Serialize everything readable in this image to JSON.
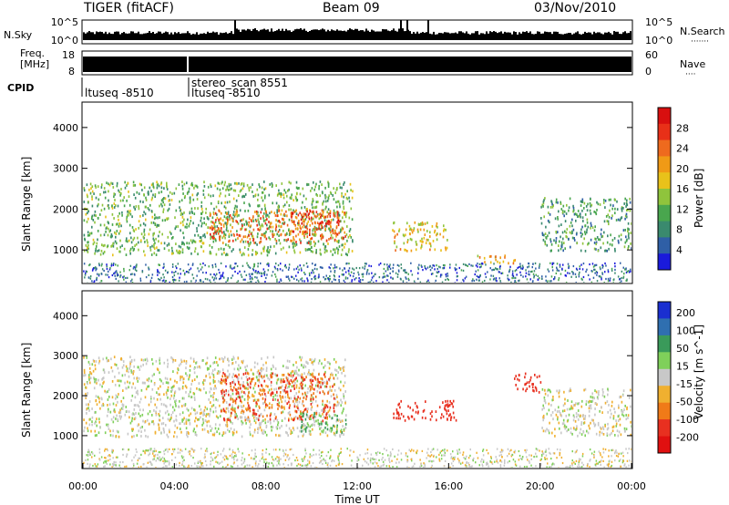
{
  "header": {
    "title": "TIGER (fitACF)",
    "beam": "Beam 09",
    "date": "03/Nov/2010"
  },
  "top_panels": {
    "nsky_label": "N.Sky",
    "nsky_ticks": [
      "10^5",
      "10^0"
    ],
    "nsearch_label": "N.Search",
    "nsearch_ticks": [
      "10^5",
      "10^0"
    ],
    "freq_label_line1": "Freq.",
    "freq_label_line2": "[MHz]",
    "freq_ticks": [
      "18",
      "8"
    ],
    "nave_label": "Nave",
    "nave_ticks": [
      "60",
      "0"
    ],
    "cpid_label": "CPID",
    "cpid_entries": [
      {
        "text": "ltuseq -8510",
        "time": "00:00"
      },
      {
        "text": "stereo_scan 8551",
        "time": "04:50"
      },
      {
        "text": "ltuseq -8510",
        "time": "04:50"
      }
    ]
  },
  "chart_data": [
    {
      "type": "heatmap",
      "name": "power",
      "ylabel": "Slant Range [km]",
      "yticks": [
        1000,
        2000,
        3000,
        4000
      ],
      "ylim": [
        200,
        4600
      ],
      "xlim": [
        "00:00",
        "24:00"
      ],
      "colorbar_label": "Power [dB]",
      "colorbar_ticks": [
        4,
        8,
        12,
        16,
        20,
        24,
        28
      ],
      "colorbar_range": [
        0,
        32
      ],
      "colors": [
        "#1a1adb",
        "#2f5fa6",
        "#3a8a6e",
        "#49a64e",
        "#8fc43c",
        "#e8c21a",
        "#f09a16",
        "#ee6a1e",
        "#e83018",
        "#d80f0f"
      ],
      "regions": [
        {
          "t": [
            0.0,
            11.8
          ],
          "r": [
            900,
            2700
          ],
          "level": 12
        },
        {
          "t": [
            5.5,
            11.5
          ],
          "r": [
            1200,
            2000
          ],
          "level": 24
        },
        {
          "t": [
            9.0,
            11.2
          ],
          "r": [
            1400,
            2000
          ],
          "level": 26
        },
        {
          "t": [
            13.5,
            16.0
          ],
          "r": [
            1000,
            1700
          ],
          "level": 18
        },
        {
          "t": [
            17.2,
            19.0
          ],
          "r": [
            700,
            900
          ],
          "level": 20
        },
        {
          "t": [
            20.0,
            24.0
          ],
          "r": [
            1000,
            2300
          ],
          "level": 10
        }
      ]
    },
    {
      "type": "heatmap",
      "name": "velocity",
      "ylabel": "Slant Range [km]",
      "yticks": [
        1000,
        2000,
        3000,
        4000
      ],
      "ylim": [
        200,
        4600
      ],
      "xlim": [
        "00:00",
        "24:00"
      ],
      "xticks": [
        "00:00",
        "04:00",
        "08:00",
        "12:00",
        "16:00",
        "20:00",
        "00:00"
      ],
      "xlabel": "Time UT",
      "colorbar_label": "Velocity [m s^-1]",
      "colorbar_ticks": [
        200,
        100,
        50,
        15,
        -15,
        -50,
        -100,
        -200
      ],
      "colors": [
        "#1a2fd0",
        "#2f6fb0",
        "#3a9a5a",
        "#7fd05a",
        "#c8c8c8",
        "#f0b030",
        "#f07a18",
        "#e83020",
        "#e01010"
      ],
      "regions": [
        {
          "t": [
            0.0,
            11.5
          ],
          "r": [
            1000,
            3000
          ],
          "level": 0
        },
        {
          "t": [
            6.0,
            11.0
          ],
          "r": [
            1400,
            2600
          ],
          "level": -100
        },
        {
          "t": [
            9.5,
            11.5
          ],
          "r": [
            1100,
            1600
          ],
          "level": 50
        },
        {
          "t": [
            13.5,
            16.3
          ],
          "r": [
            1400,
            1900
          ],
          "level": -200
        },
        {
          "t": [
            18.8,
            20.0
          ],
          "r": [
            2100,
            2600
          ],
          "level": -200
        },
        {
          "t": [
            20.0,
            24.0
          ],
          "r": [
            1000,
            2200
          ],
          "level": 0
        }
      ]
    }
  ]
}
